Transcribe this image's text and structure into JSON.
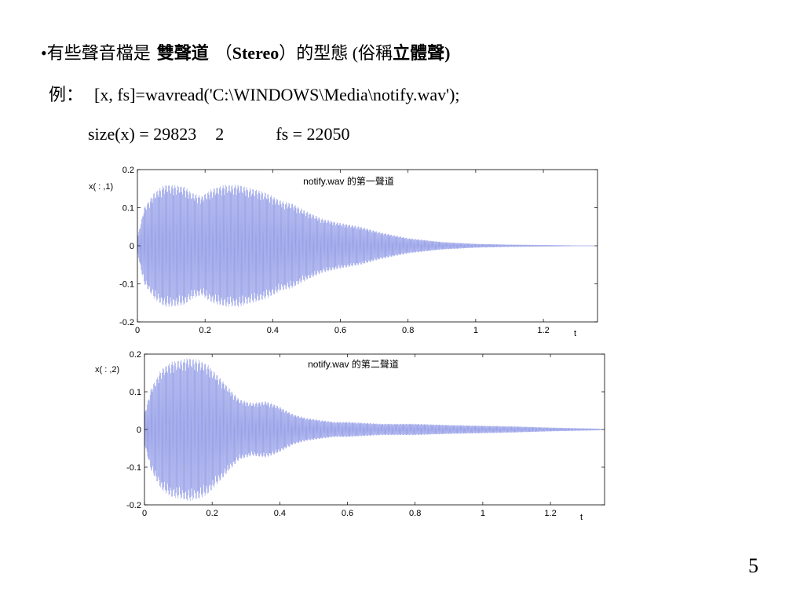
{
  "slide": {
    "line1": {
      "bullet": "•",
      "prefix": "有些聲音檔是",
      "term_bold": "雙聲道",
      "paren_open": "（",
      "term_en": "Stereo",
      "paren_close": "）",
      "mid": "的型態 (俗稱",
      "alias_bold": "立體聲",
      "close": ")"
    },
    "line2": {
      "label": "例：",
      "code": "[x, fs]=wavread('C:\\WINDOWS\\Media\\notify.wav');"
    },
    "line3": {
      "size_expr": "size(x) = 29823",
      "size_cols": "2",
      "fs_expr": "fs = 22050"
    },
    "page_number": "5"
  },
  "colors": {
    "waveform": "#8c96e6",
    "axis": "#000000",
    "background": "#ffffff"
  },
  "chart_data": [
    {
      "type": "line",
      "title": "notify.wav 的第一聲道",
      "xlabel": "t",
      "ylabel": "x( : ,1)",
      "xlim": [
        0,
        1.36
      ],
      "ylim": [
        -0.2,
        0.2
      ],
      "xticks": [
        "0",
        "0.2",
        "0.4",
        "0.6",
        "0.8",
        "1",
        "1.2"
      ],
      "yticks": [
        "0.2",
        "0.1",
        "0",
        "-0.1",
        "-0.2"
      ],
      "grid": false,
      "series": [
        {
          "envelope_t": [
            0,
            0.02,
            0.05,
            0.08,
            0.11,
            0.14,
            0.16,
            0.19,
            0.22,
            0.26,
            0.3,
            0.34,
            0.38,
            0.42,
            0.46,
            0.5,
            0.55,
            0.6,
            0.66,
            0.72,
            0.8,
            0.9,
            1.0,
            1.1,
            1.2,
            1.3,
            1.35
          ],
          "envelope_amp": [
            0.02,
            0.1,
            0.14,
            0.16,
            0.16,
            0.155,
            0.14,
            0.13,
            0.15,
            0.16,
            0.16,
            0.15,
            0.14,
            0.12,
            0.11,
            0.09,
            0.07,
            0.06,
            0.05,
            0.035,
            0.02,
            0.01,
            0.005,
            0.003,
            0.002,
            0.001,
            0.001
          ]
        }
      ]
    },
    {
      "type": "line",
      "title": "notify.wav 的第二聲道",
      "xlabel": "t",
      "ylabel": "x( : ,2)",
      "xlim": [
        0,
        1.36
      ],
      "ylim": [
        -0.2,
        0.2
      ],
      "xticks": [
        "0",
        "0.2",
        "0.4",
        "0.6",
        "0.8",
        "1",
        "1.2"
      ],
      "yticks": [
        "0.2",
        "0.1",
        "0",
        "-0.1",
        "-0.2"
      ],
      "grid": false,
      "series": [
        {
          "envelope_t": [
            0,
            0.02,
            0.05,
            0.08,
            0.11,
            0.13,
            0.16,
            0.19,
            0.22,
            0.25,
            0.28,
            0.32,
            0.36,
            0.4,
            0.44,
            0.48,
            0.52,
            0.56,
            0.6,
            0.7,
            0.8,
            0.9,
            1.0,
            1.1,
            1.2,
            1.3,
            1.35
          ],
          "envelope_amp": [
            0.04,
            0.11,
            0.16,
            0.18,
            0.185,
            0.19,
            0.185,
            0.17,
            0.14,
            0.11,
            0.08,
            0.07,
            0.075,
            0.06,
            0.04,
            0.03,
            0.025,
            0.02,
            0.02,
            0.015,
            0.015,
            0.012,
            0.01,
            0.008,
            0.005,
            0.003,
            0.002
          ]
        }
      ]
    }
  ]
}
